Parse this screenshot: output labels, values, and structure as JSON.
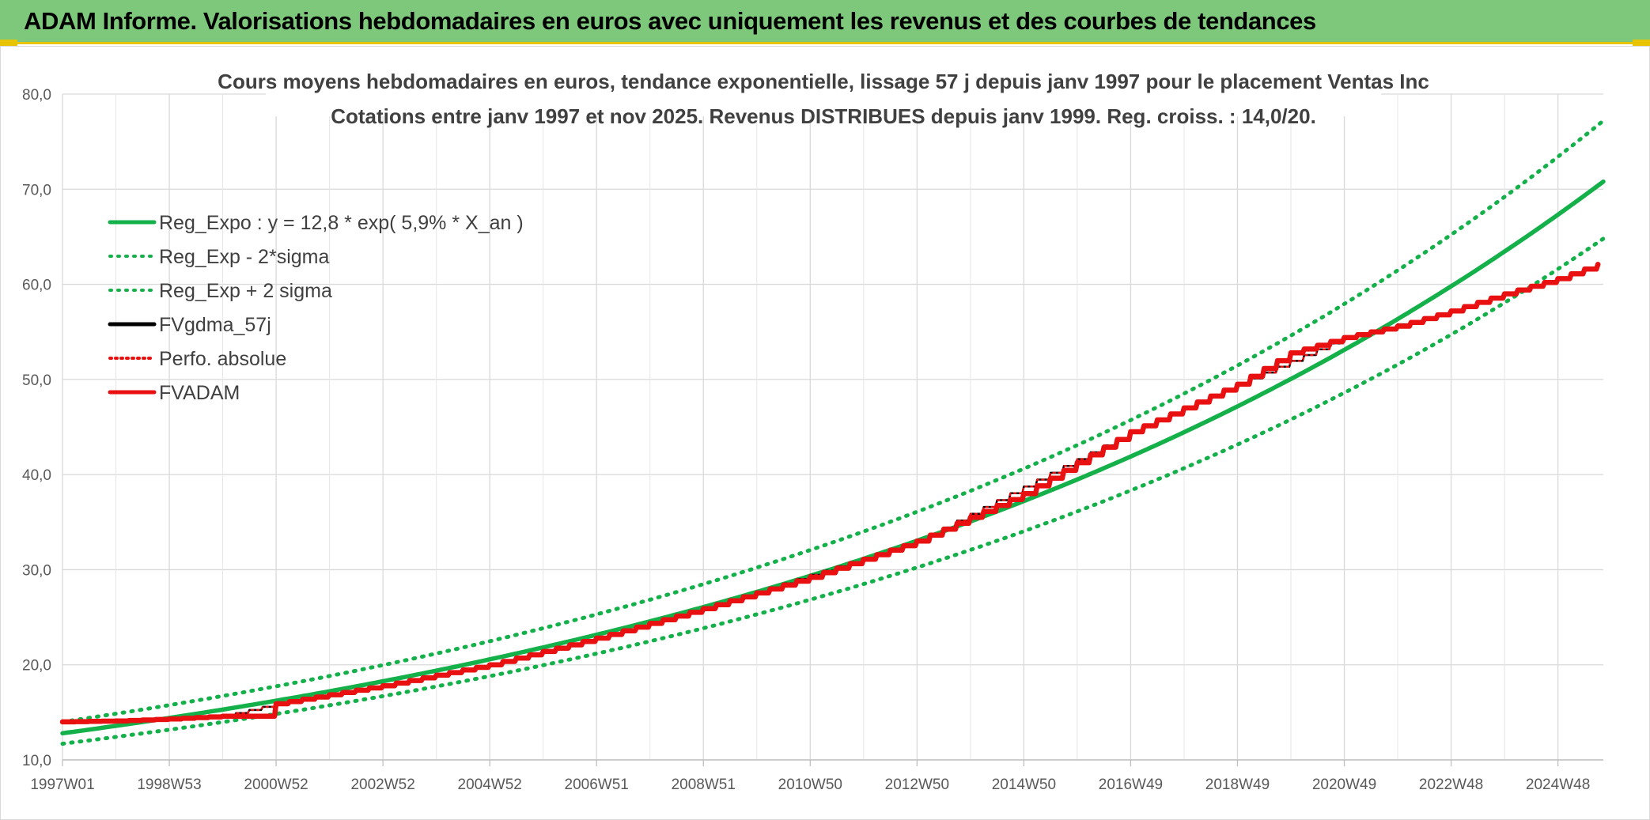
{
  "header": {
    "title": "ADAM Informe. Valorisations hebdomadaires en euros avec uniquement les revenus et des courbes de tendances"
  },
  "colors": {
    "header_bg": "#7dc87b",
    "accent": "#e8c400",
    "green": "#14b04a",
    "red": "#e81010",
    "black": "#000000"
  },
  "chart_data": {
    "type": "line",
    "title_lines": [
      "Cours moyens hebdomadaires en euros, tendance exponentielle, lissage 57 j depuis janv 1997 pour le placement Ventas Inc",
      "Cotations entre janv 1997 et nov 2025. Revenus DISTRIBUES depuis janv 1999. Reg. croiss. : 14,0/20."
    ],
    "xlabel": "",
    "ylabel": "",
    "ylim": [
      10,
      80
    ],
    "xlim_years": [
      1997.0,
      2025.85
    ],
    "grid": true,
    "y_ticks": [
      "10,0",
      "20,0",
      "30,0",
      "40,0",
      "50,0",
      "60,0",
      "70,0",
      "80,0"
    ],
    "x_ticks": [
      {
        "label": "1997W01",
        "x": 1997.0
      },
      {
        "label": "1998W53",
        "x": 1999.0
      },
      {
        "label": "2000W52",
        "x": 2001.0
      },
      {
        "label": "2002W52",
        "x": 2003.0
      },
      {
        "label": "2004W52",
        "x": 2005.0
      },
      {
        "label": "2006W51",
        "x": 2007.0
      },
      {
        "label": "2008W51",
        "x": 2009.0
      },
      {
        "label": "2010W50",
        "x": 2011.0
      },
      {
        "label": "2012W50",
        "x": 2013.0
      },
      {
        "label": "2014W50",
        "x": 2015.0
      },
      {
        "label": "2016W49",
        "x": 2017.0
      },
      {
        "label": "2018W49",
        "x": 2019.0
      },
      {
        "label": "2020W49",
        "x": 2021.0
      },
      {
        "label": "2022W48",
        "x": 2023.0
      },
      {
        "label": "2024W48",
        "x": 2025.0
      }
    ],
    "legend_position": "top-left",
    "series": [
      {
        "name": "Reg_Expo : y = 12,8 * exp( 5,9% *  X_an )",
        "color": "#14b04a",
        "style": "solid",
        "x": [
          1997.0,
          2001.0,
          2005.0,
          2009.0,
          2013.0,
          2017.0,
          2021.0,
          2025.0,
          2025.85
        ],
        "y": [
          12.8,
          16.2,
          20.4,
          25.8,
          32.7,
          41.4,
          52.5,
          66.7,
          70.8
        ]
      },
      {
        "name": "Reg_Exp - 2*sigma",
        "color": "#14b04a",
        "style": "dotted",
        "x": [
          1997.0,
          2001.0,
          2005.0,
          2009.0,
          2013.0,
          2017.0,
          2021.0,
          2025.0,
          2025.85
        ],
        "y": [
          11.7,
          14.8,
          18.6,
          23.6,
          29.9,
          37.9,
          48.2,
          61.2,
          64.8
        ]
      },
      {
        "name": "Reg_Exp + 2 sigma",
        "color": "#14b04a",
        "style": "dotted",
        "x": [
          1997.0,
          2001.0,
          2005.0,
          2009.0,
          2013.0,
          2017.0,
          2021.0,
          2025.0,
          2025.85
        ],
        "y": [
          14.0,
          17.6,
          22.3,
          28.2,
          35.7,
          45.2,
          57.4,
          72.8,
          77.2
        ]
      },
      {
        "name": "FVgdma_57j",
        "color": "#000000",
        "style": "solid",
        "x": [
          1997.0,
          2000.0,
          2001.0,
          2005.0,
          2009.0,
          2013.0,
          2017.0,
          2019.0,
          2021.0,
          2023.0,
          2025.0,
          2025.85
        ],
        "y": [
          14.0,
          14.6,
          15.9,
          20.0,
          25.9,
          33.0,
          44.5,
          49.5,
          54.4,
          57.2,
          60.6,
          62.3
        ]
      },
      {
        "name": "Perfo. absolue",
        "color": "#e81010",
        "style": "dotted",
        "x": [
          1997.0,
          2000.0,
          2001.0,
          2005.0,
          2009.0,
          2013.0,
          2017.0,
          2019.0,
          2021.0,
          2023.0,
          2025.0,
          2025.85
        ],
        "y": [
          14.0,
          14.6,
          15.9,
          20.0,
          25.9,
          33.0,
          44.5,
          49.5,
          54.4,
          57.2,
          60.6,
          62.3
        ]
      },
      {
        "name": "FVADAM",
        "color": "#e81010",
        "style": "solid",
        "x": [
          1997.0,
          1998.0,
          1999.0,
          2000.0,
          2000.75,
          2001.0,
          2003.0,
          2005.0,
          2007.0,
          2009.0,
          2011.0,
          2013.0,
          2015.0,
          2017.0,
          2019.0,
          2020.0,
          2021.0,
          2022.0,
          2023.0,
          2024.0,
          2025.0,
          2025.85
        ],
        "y": [
          14.0,
          14.1,
          14.3,
          14.6,
          14.6,
          15.9,
          17.8,
          20.0,
          22.8,
          25.9,
          29.2,
          33.0,
          38.0,
          44.5,
          49.5,
          52.8,
          54.4,
          55.6,
          57.2,
          59.0,
          60.6,
          62.3
        ]
      }
    ]
  }
}
